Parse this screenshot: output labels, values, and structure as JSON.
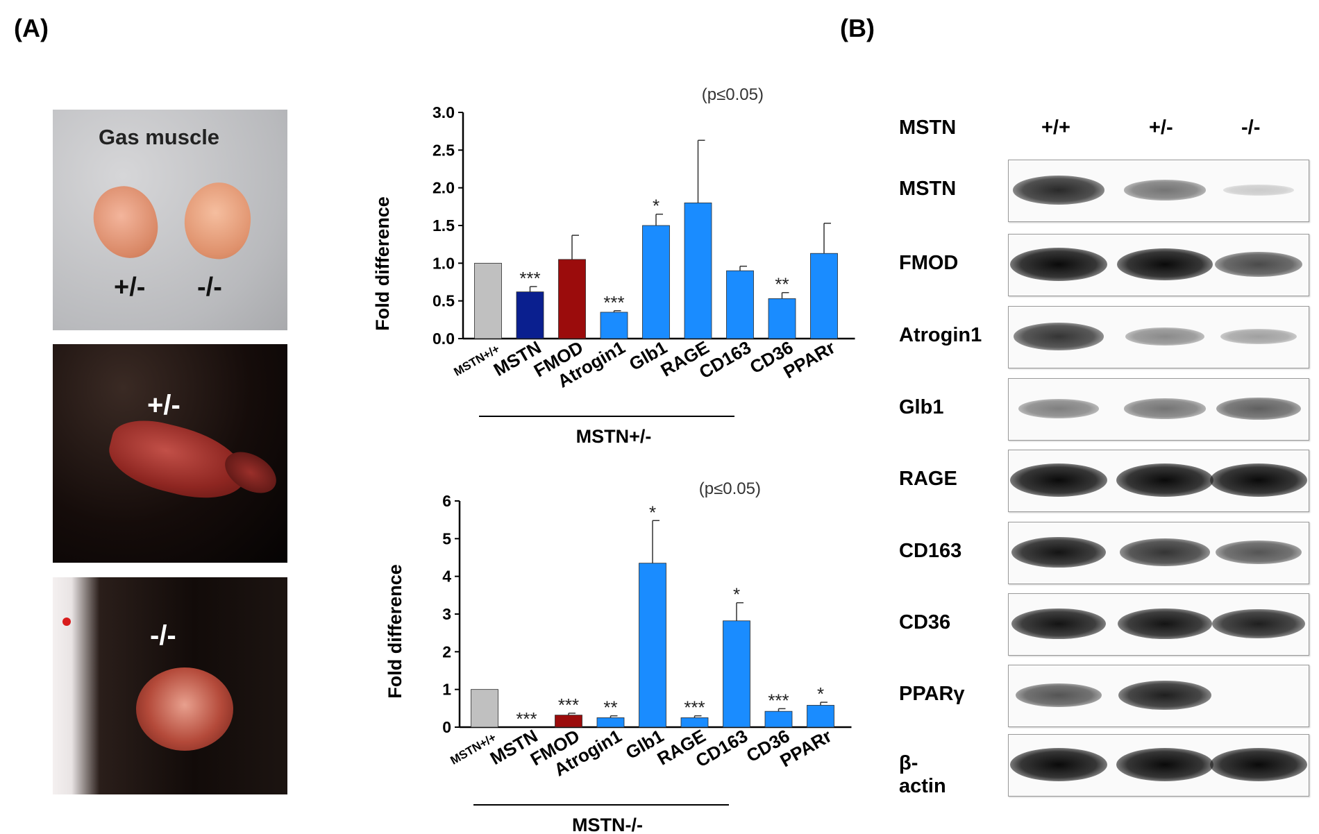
{
  "panels": {
    "a": "(A)",
    "b": "(B)"
  },
  "photos": {
    "top_title": "Gas muscle",
    "top_left_label": "+/-",
    "top_right_label": "-/-",
    "middle_label": "+/-",
    "bottom_label": "-/-"
  },
  "colors": {
    "control": "#c0c0c0",
    "mstn": "#0a1f8f",
    "fmod": "#9b0c0c",
    "other": "#1a8cff"
  },
  "chart_data": [
    {
      "type": "bar",
      "title": "",
      "annotation": "(p≤0.05)",
      "ylabel": "Fold difference",
      "xlabel": "MSTN+/-",
      "ylim": [
        0,
        3.0
      ],
      "yticks": [
        "0.0",
        "0.5",
        "1.0",
        "1.5",
        "2.0",
        "2.5",
        "3.0"
      ],
      "categories": [
        "MSTN+/+",
        "MSTN",
        "FMOD",
        "Atrogin1",
        "Glb1",
        "RAGE",
        "CD163",
        "CD36",
        "PPARr"
      ],
      "values": [
        1.0,
        0.62,
        1.05,
        0.35,
        1.5,
        1.8,
        0.9,
        0.53,
        1.13
      ],
      "errors": [
        0,
        0.07,
        0.32,
        0.02,
        0.15,
        0.83,
        0.06,
        0.08,
        0.4
      ],
      "significance": [
        "",
        "***",
        "",
        "***",
        "*",
        "",
        "",
        "**",
        ""
      ],
      "bar_colors": [
        "control",
        "mstn",
        "fmod",
        "other",
        "other",
        "other",
        "other",
        "other",
        "other"
      ]
    },
    {
      "type": "bar",
      "title": "",
      "annotation": "(p≤0.05)",
      "ylabel": "Fold difference",
      "xlabel": "MSTN-/-",
      "ylim": [
        0,
        6
      ],
      "yticks": [
        "0",
        "1",
        "2",
        "3",
        "4",
        "5",
        "6"
      ],
      "categories": [
        "MSTN+/+",
        "MSTN",
        "FMOD",
        "Atrogin1",
        "Glb1",
        "RAGE",
        "CD163",
        "CD36",
        "PPARr"
      ],
      "values": [
        1.0,
        0.0,
        0.32,
        0.25,
        4.35,
        0.25,
        2.82,
        0.42,
        0.58
      ],
      "errors": [
        0,
        0,
        0.05,
        0.05,
        1.13,
        0.05,
        0.48,
        0.07,
        0.08
      ],
      "significance": [
        "",
        "***",
        "***",
        "**",
        "*",
        "***",
        "*",
        "***",
        "*"
      ],
      "bar_colors": [
        "control",
        "mstn",
        "fmod",
        "other",
        "other",
        "other",
        "other",
        "other",
        "other"
      ]
    }
  ],
  "western": {
    "header_label": "MSTN",
    "genotypes": [
      "+/+",
      "+/-",
      "-/-"
    ],
    "rows": [
      {
        "label": "MSTN",
        "intensity": [
          0.8,
          0.45,
          0.05
        ]
      },
      {
        "label": "FMOD",
        "intensity": [
          1.0,
          0.95,
          0.65
        ]
      },
      {
        "label": "Atrogin1",
        "intensity": [
          0.75,
          0.35,
          0.25
        ]
      },
      {
        "label": "Glb1",
        "intensity": [
          0.4,
          0.45,
          0.55
        ]
      },
      {
        "label": "RAGE",
        "intensity": [
          1.0,
          1.0,
          1.0
        ]
      },
      {
        "label": "CD163",
        "intensity": [
          0.9,
          0.75,
          0.6
        ]
      },
      {
        "label": "CD36",
        "intensity": [
          0.9,
          0.9,
          0.85
        ]
      },
      {
        "label": "PPARγ",
        "intensity": [
          0.6,
          0.85,
          0.0
        ]
      },
      {
        "label": "β-actin",
        "intensity": [
          1.0,
          1.0,
          1.0
        ]
      }
    ]
  }
}
